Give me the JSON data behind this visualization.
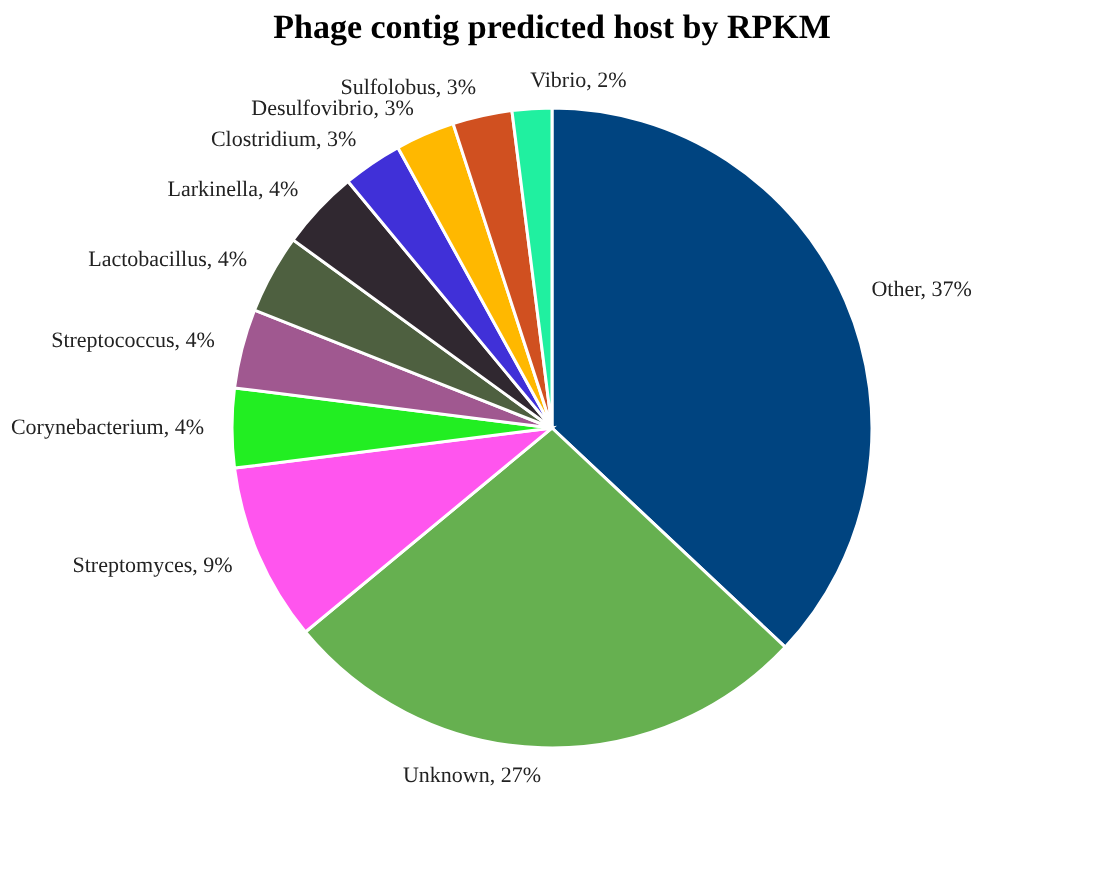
{
  "chart_data": {
    "type": "pie",
    "title": "Phage contig predicted host by RPKM",
    "categories": [
      "Other",
      "Unknown",
      "Streptomyces",
      "Corynebacterium",
      "Streptococcus",
      "Lactobacillus",
      "Larkinella",
      "Clostridium",
      "Desulfovibrio",
      "Sulfolobus",
      "Vibrio"
    ],
    "values": [
      37,
      27,
      9,
      4,
      4,
      4,
      4,
      3,
      3,
      3,
      2
    ],
    "value_labels": [
      "37%",
      "27%",
      "9%",
      "4%",
      "4%",
      "4%",
      "4%",
      "3%",
      "3%",
      "3%",
      "2%"
    ],
    "colors": [
      "#004480",
      "#66b050",
      "#ff55ee",
      "#22ee22",
      "#a05890",
      "#4e6040",
      "#302830",
      "#4030d8",
      "#ffb800",
      "#d05020",
      "#20f0a0"
    ],
    "legend": false
  }
}
